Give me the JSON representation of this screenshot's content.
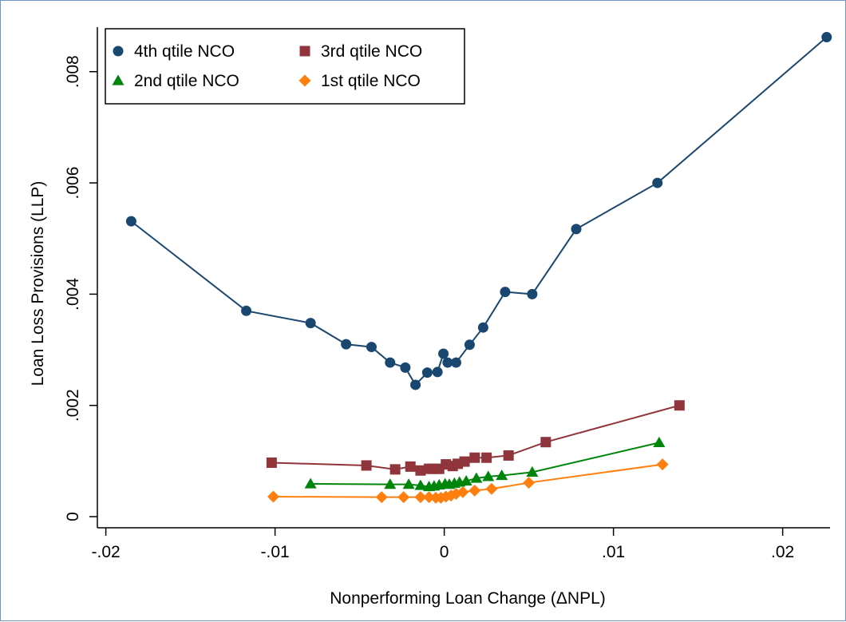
{
  "chart_data": {
    "type": "line",
    "title": "",
    "xlabel": "Nonperforming Loan Change (ΔNPL)",
    "ylabel": "Loan Loss Provisions (LLP)",
    "xlim": [
      -0.0205,
      0.0228
    ],
    "ylim": [
      -0.0002,
      0.0088
    ],
    "x_ticks": [
      -0.02,
      -0.01,
      0,
      0.01,
      0.02
    ],
    "x_tick_labels": [
      "-.02",
      "-.01",
      "0",
      ".01",
      ".02"
    ],
    "y_ticks": [
      0,
      0.002,
      0.004,
      0.006,
      0.008
    ],
    "y_tick_labels": [
      "0",
      ".002",
      ".004",
      ".006",
      ".008"
    ],
    "grid": false,
    "legend": {
      "position": "top-left",
      "columns": 2
    },
    "series": [
      {
        "name": "4th qtile NCO",
        "color": "#1a476f",
        "marker": "circle",
        "x": [
          -0.0185,
          -0.0117,
          -0.0079,
          -0.0058,
          -0.0043,
          -0.0032,
          -0.0023,
          -0.0017,
          -0.001,
          -0.0004,
          -5e-05,
          0.0002,
          0.0007,
          0.0015,
          0.0023,
          0.0036,
          0.0052,
          0.0078,
          0.0126,
          0.0226
        ],
        "y": [
          0.00531,
          0.0037,
          0.00348,
          0.0031,
          0.00305,
          0.00277,
          0.00268,
          0.00237,
          0.00259,
          0.0026,
          0.00293,
          0.00277,
          0.00277,
          0.00309,
          0.0034,
          0.00404,
          0.004,
          0.00517,
          0.006,
          0.00862
        ]
      },
      {
        "name": "3rd qtile NCO",
        "color": "#90353b",
        "marker": "square",
        "x": [
          -0.0102,
          -0.0046,
          -0.0029,
          -0.002,
          -0.0014,
          -0.0009,
          -0.0006,
          -0.0003,
          0.0001,
          0.0005,
          0.0008,
          0.0012,
          0.0018,
          0.0025,
          0.0038,
          0.006,
          0.0139
        ],
        "y": [
          0.00097,
          0.00092,
          0.00085,
          0.0009,
          0.00083,
          0.00086,
          0.00086,
          0.00086,
          0.00094,
          0.00091,
          0.00095,
          0.00099,
          0.00106,
          0.00106,
          0.0011,
          0.00134,
          0.002
        ]
      },
      {
        "name": "2nd qtile NCO",
        "color": "#00850b",
        "marker": "triangle",
        "x": [
          -0.0079,
          -0.0032,
          -0.0021,
          -0.0014,
          -0.0009,
          -0.0006,
          -0.0003,
          5e-05,
          0.0003,
          0.0006,
          0.0009,
          0.0013,
          0.0019,
          0.0026,
          0.0034,
          0.0052,
          0.0127
        ],
        "y": [
          0.00059,
          0.00058,
          0.00058,
          0.00056,
          0.00054,
          0.00055,
          0.00057,
          0.00059,
          0.00058,
          0.0006,
          0.00062,
          0.00064,
          0.00069,
          0.00072,
          0.00074,
          0.0008,
          0.00133
        ]
      },
      {
        "name": "1st qtile NCO",
        "color": "#ff7f0e",
        "marker": "diamond",
        "x": [
          -0.0101,
          -0.0037,
          -0.0024,
          -0.0014,
          -0.0009,
          -0.0005,
          -0.0002,
          0.0001,
          0.0004,
          0.0007,
          0.0011,
          0.0018,
          0.0028,
          0.005,
          0.0129
        ],
        "y": [
          0.00036,
          0.00035,
          0.00035,
          0.00035,
          0.00035,
          0.00034,
          0.00034,
          0.00036,
          0.00038,
          0.00041,
          0.00044,
          0.00047,
          0.0005,
          0.00061,
          0.00094
        ]
      }
    ]
  }
}
